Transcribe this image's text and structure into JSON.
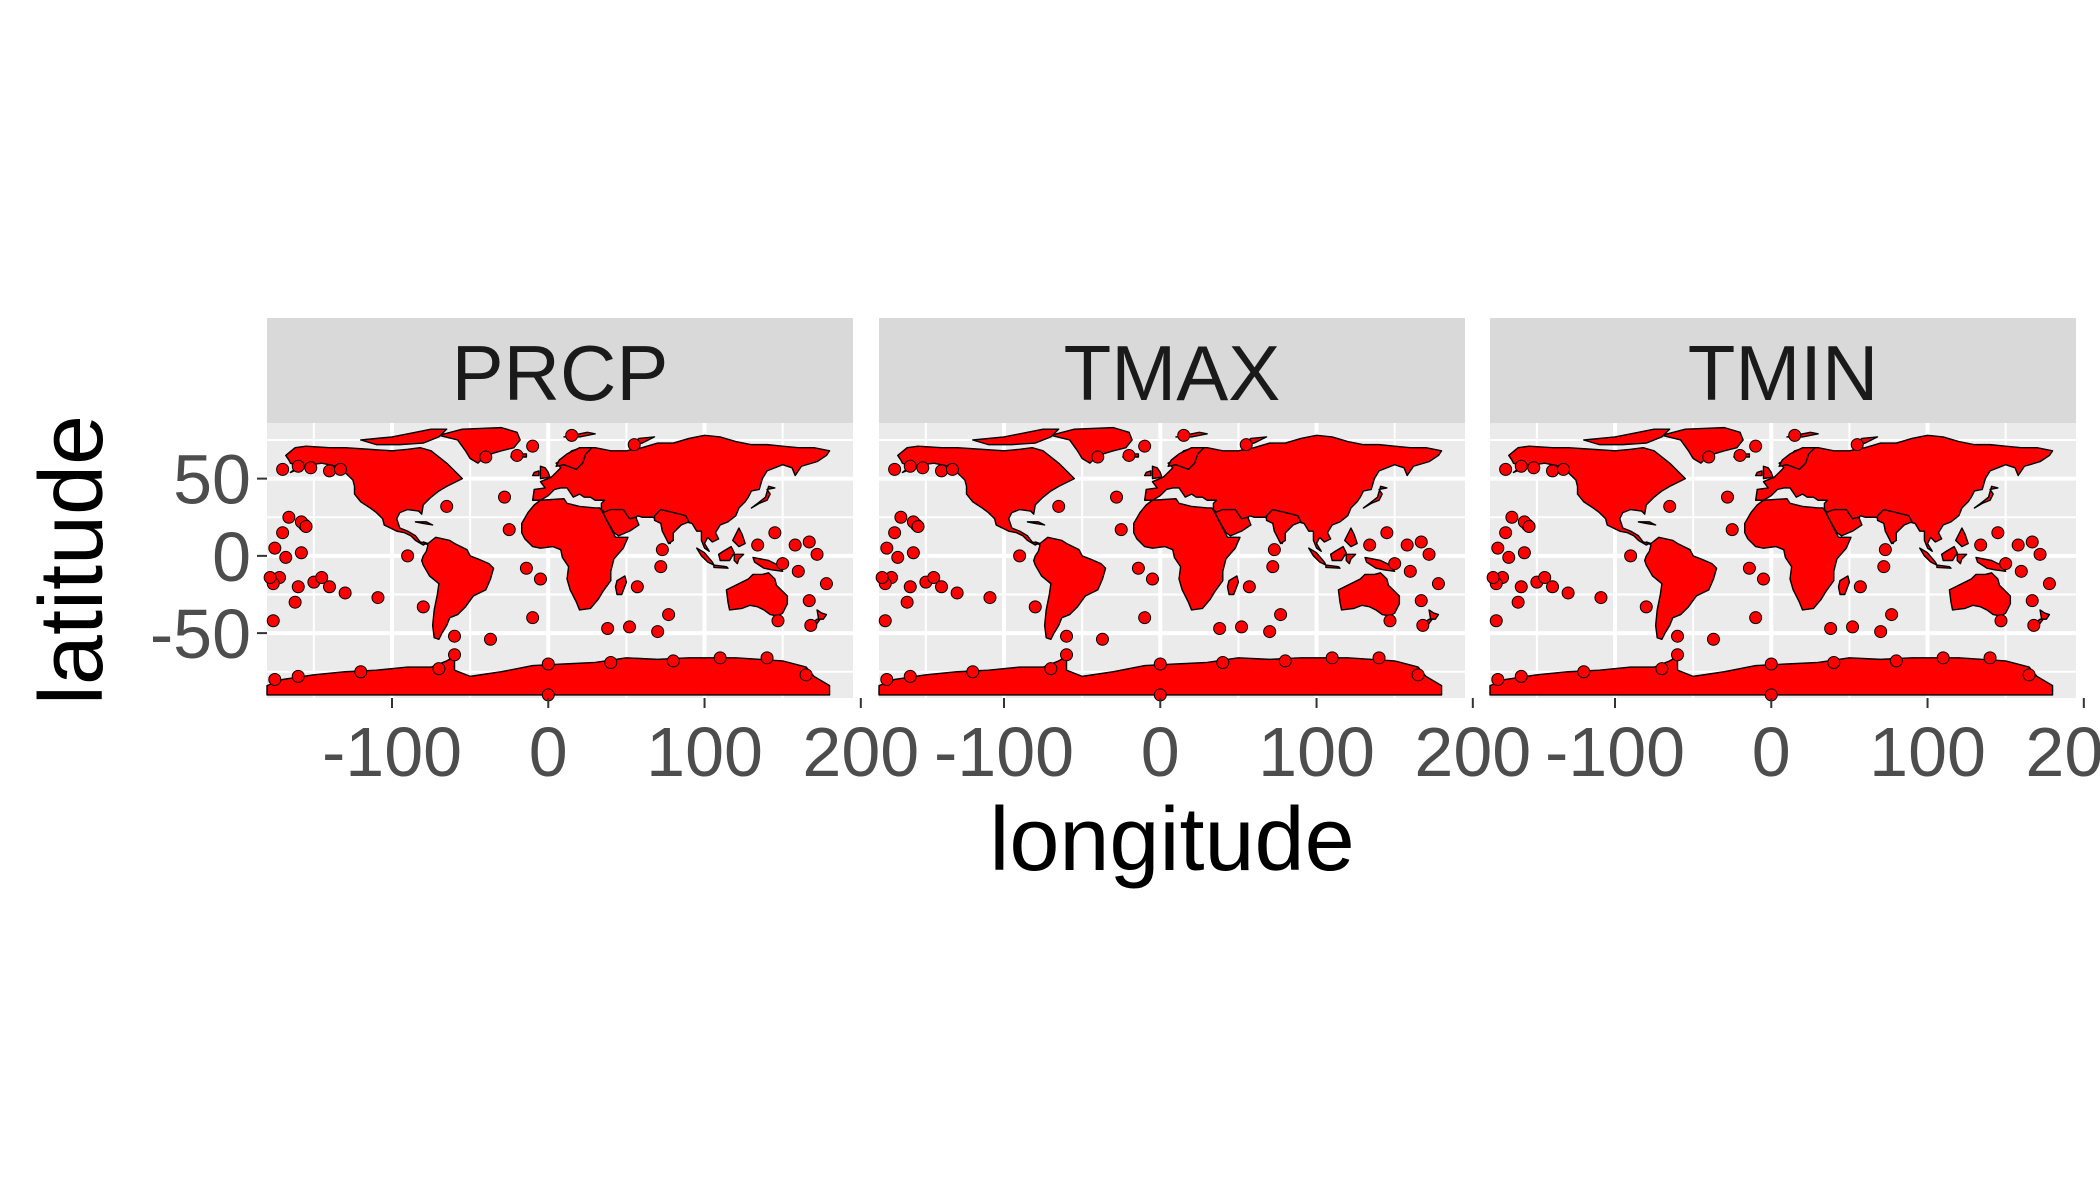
{
  "chart_data": {
    "type": "map",
    "subtype": "faceted station map",
    "xlabel": "longitude",
    "ylabel": "latitude",
    "xlim": [
      -180,
      195
    ],
    "ylim": [
      -92,
      86
    ],
    "x_ticks": [
      -100,
      0,
      100,
      200
    ],
    "x_tick_labels": [
      "-100",
      "0",
      "100",
      "200"
    ],
    "y_ticks": [
      -50,
      0,
      50
    ],
    "y_tick_labels": [
      "-50",
      "0",
      "50"
    ],
    "grid": true,
    "panel_background": "#ebebeb",
    "grid_color": "#ffffff",
    "strip_background": "#d9d9d9",
    "land_fill": "#ff0000",
    "border_color": "#000000",
    "point_color": "#ff0000",
    "facets": [
      {
        "label": "PRCP"
      },
      {
        "label": "TMAX"
      },
      {
        "label": "TMIN"
      }
    ],
    "isolated_points": [
      [
        -170,
        56
      ],
      [
        -160,
        58
      ],
      [
        -152,
        57
      ],
      [
        -140,
        55
      ],
      [
        -133,
        56
      ],
      [
        -156,
        20
      ],
      [
        -158,
        22
      ],
      [
        -155,
        19
      ],
      [
        -170,
        15
      ],
      [
        -166,
        25
      ],
      [
        -172,
        -14
      ],
      [
        -176,
        -18
      ],
      [
        -160,
        -20
      ],
      [
        -150,
        -17
      ],
      [
        -140,
        -20
      ],
      [
        -130,
        -24
      ],
      [
        -145,
        -14
      ],
      [
        -175,
        5
      ],
      [
        -168,
        -1
      ],
      [
        -158,
        2
      ],
      [
        -176,
        -42
      ],
      [
        -162,
        -30
      ],
      [
        -109,
        -27
      ],
      [
        -80,
        -33
      ],
      [
        -90,
        0
      ],
      [
        -65,
        32
      ],
      [
        -28,
        38
      ],
      [
        -25,
        17
      ],
      [
        -5,
        -15
      ],
      [
        -14,
        -8
      ],
      [
        -10,
        -40
      ],
      [
        -37,
        -54
      ],
      [
        -60,
        -52
      ],
      [
        -20,
        65
      ],
      [
        -40,
        64
      ],
      [
        -10,
        71
      ],
      [
        15,
        78
      ],
      [
        55,
        72
      ],
      [
        57,
        -20
      ],
      [
        72,
        -7
      ],
      [
        73,
        4
      ],
      [
        77,
        -38
      ],
      [
        70,
        -49
      ],
      [
        52,
        -46
      ],
      [
        38,
        -47
      ],
      [
        110,
        -66
      ],
      [
        140,
        -66
      ],
      [
        80,
        -68
      ],
      [
        40,
        -69
      ],
      [
        0,
        -70
      ],
      [
        -60,
        -64
      ],
      [
        -70,
        -73
      ],
      [
        -120,
        -75
      ],
      [
        -160,
        -78
      ],
      [
        165,
        -77
      ],
      [
        0,
        -90
      ],
      [
        -175,
        -80
      ],
      [
        167,
        -29
      ],
      [
        178,
        -18
      ],
      [
        -178,
        -14
      ],
      [
        172,
        1
      ],
      [
        158,
        7
      ],
      [
        145,
        15
      ],
      [
        134,
        7
      ],
      [
        167,
        9
      ],
      [
        168,
        -45
      ],
      [
        160,
        -10
      ],
      [
        150,
        -5
      ],
      [
        147,
        -42
      ]
    ]
  }
}
